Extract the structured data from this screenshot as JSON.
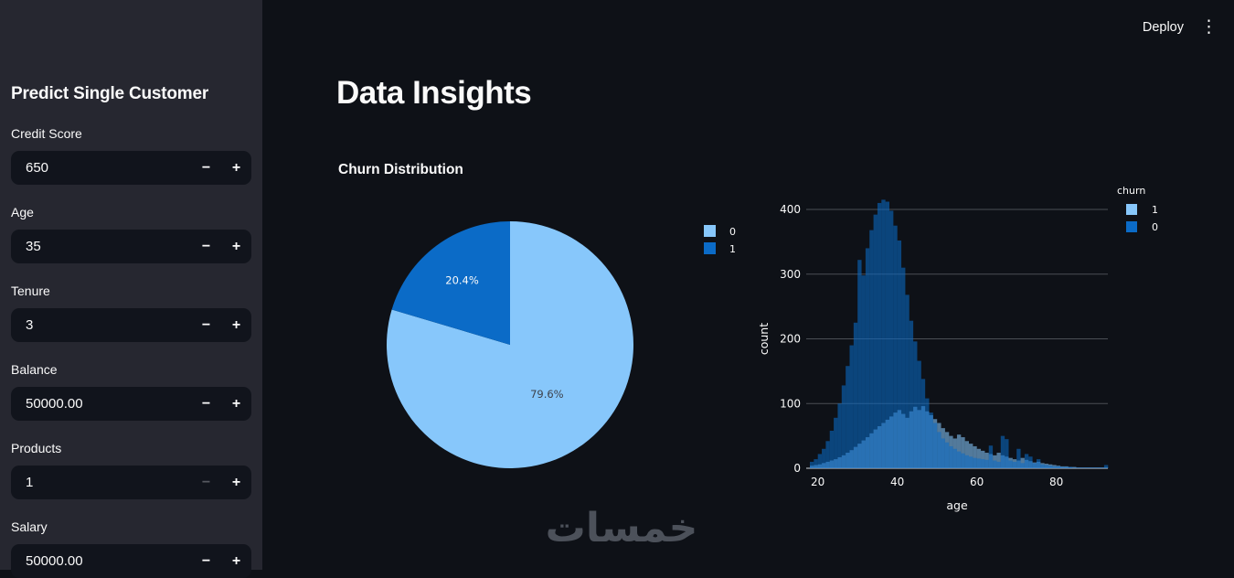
{
  "sidebar": {
    "title": "Predict Single Customer",
    "stepper": {
      "minus": "−",
      "plus": "+"
    },
    "fields": [
      {
        "label": "Credit Score",
        "value": "650",
        "minus_disabled": false
      },
      {
        "label": "Age",
        "value": "35",
        "minus_disabled": false
      },
      {
        "label": "Tenure",
        "value": "3",
        "minus_disabled": false
      },
      {
        "label": "Balance",
        "value": "50000.00",
        "minus_disabled": false
      },
      {
        "label": "Products",
        "value": "1",
        "minus_disabled": true
      },
      {
        "label": "Salary",
        "value": "50000.00",
        "minus_disabled": false
      }
    ]
  },
  "header": {
    "deploy_label": "Deploy",
    "menu_icon": "⋮"
  },
  "main": {
    "title": "Data Insights",
    "section_title": "Churn Distribution"
  },
  "watermark": {
    "text": "خمسات"
  },
  "colors": {
    "app_bg": "#0e1117",
    "sidebar_bg": "#262730",
    "light_blue": "#87c7fb",
    "dark_blue": "#0b6bc7",
    "grid": "#4a4e55",
    "baseline": "#a9adb3",
    "pie_label_dark": "#3d424b",
    "pie_label_light": "#fafafa"
  },
  "chart_data": [
    {
      "type": "pie",
      "title": "Churn Distribution",
      "labels": [
        "0",
        "1"
      ],
      "values": [
        79.6,
        20.4
      ],
      "value_labels": [
        "79.6%",
        "20.4%"
      ],
      "colors": [
        "#87c7fb",
        "#0b6bc7"
      ],
      "legend_position": "right",
      "start": "12-oclock",
      "direction": "clockwise"
    },
    {
      "type": "bar",
      "subtype": "overlaid-histogram",
      "xlabel": "age",
      "ylabel": "count",
      "legend_title": "churn",
      "x_ticks": [
        20,
        40,
        60,
        80
      ],
      "y_ticks": [
        0,
        100,
        200,
        300,
        400
      ],
      "xlim": [
        18,
        93
      ],
      "ylim": [
        0,
        430
      ],
      "grid": "horizontal",
      "bin_start": 18,
      "bin_width": 1,
      "legend_order": [
        "1",
        "0"
      ],
      "series": [
        {
          "name": "1",
          "color": "#87c7fb",
          "values": [
            4,
            5,
            6,
            8,
            10,
            12,
            14,
            17,
            20,
            24,
            28,
            33,
            38,
            43,
            48,
            54,
            60,
            65,
            70,
            75,
            80,
            86,
            90,
            84,
            78,
            88,
            95,
            90,
            96,
            88,
            82,
            76,
            70,
            62,
            56,
            50,
            46,
            52,
            48,
            42,
            38,
            34,
            30,
            27,
            24,
            22,
            20,
            24,
            20,
            18,
            16,
            14,
            12,
            16,
            13,
            11,
            9,
            10,
            8,
            7,
            6,
            5,
            4,
            3,
            3,
            2,
            2,
            1,
            1,
            1,
            1,
            1,
            1,
            1,
            1
          ]
        },
        {
          "name": "0",
          "color": "#0b6bc7",
          "values": [
            10,
            14,
            22,
            30,
            42,
            58,
            78,
            100,
            128,
            158,
            190,
            225,
            322,
            298,
            340,
            368,
            392,
            410,
            415,
            412,
            398,
            375,
            352,
            310,
            268,
            228,
            196,
            166,
            138,
            108,
            86,
            70,
            56,
            46,
            40,
            34,
            30,
            26,
            23,
            20,
            18,
            16,
            15,
            14,
            13,
            35,
            12,
            10,
            50,
            45,
            12,
            10,
            30,
            8,
            22,
            18,
            8,
            14,
            6,
            5,
            4,
            3,
            3,
            2,
            2,
            2,
            1,
            1,
            1,
            1,
            1,
            1,
            1,
            1,
            5
          ]
        }
      ]
    }
  ]
}
